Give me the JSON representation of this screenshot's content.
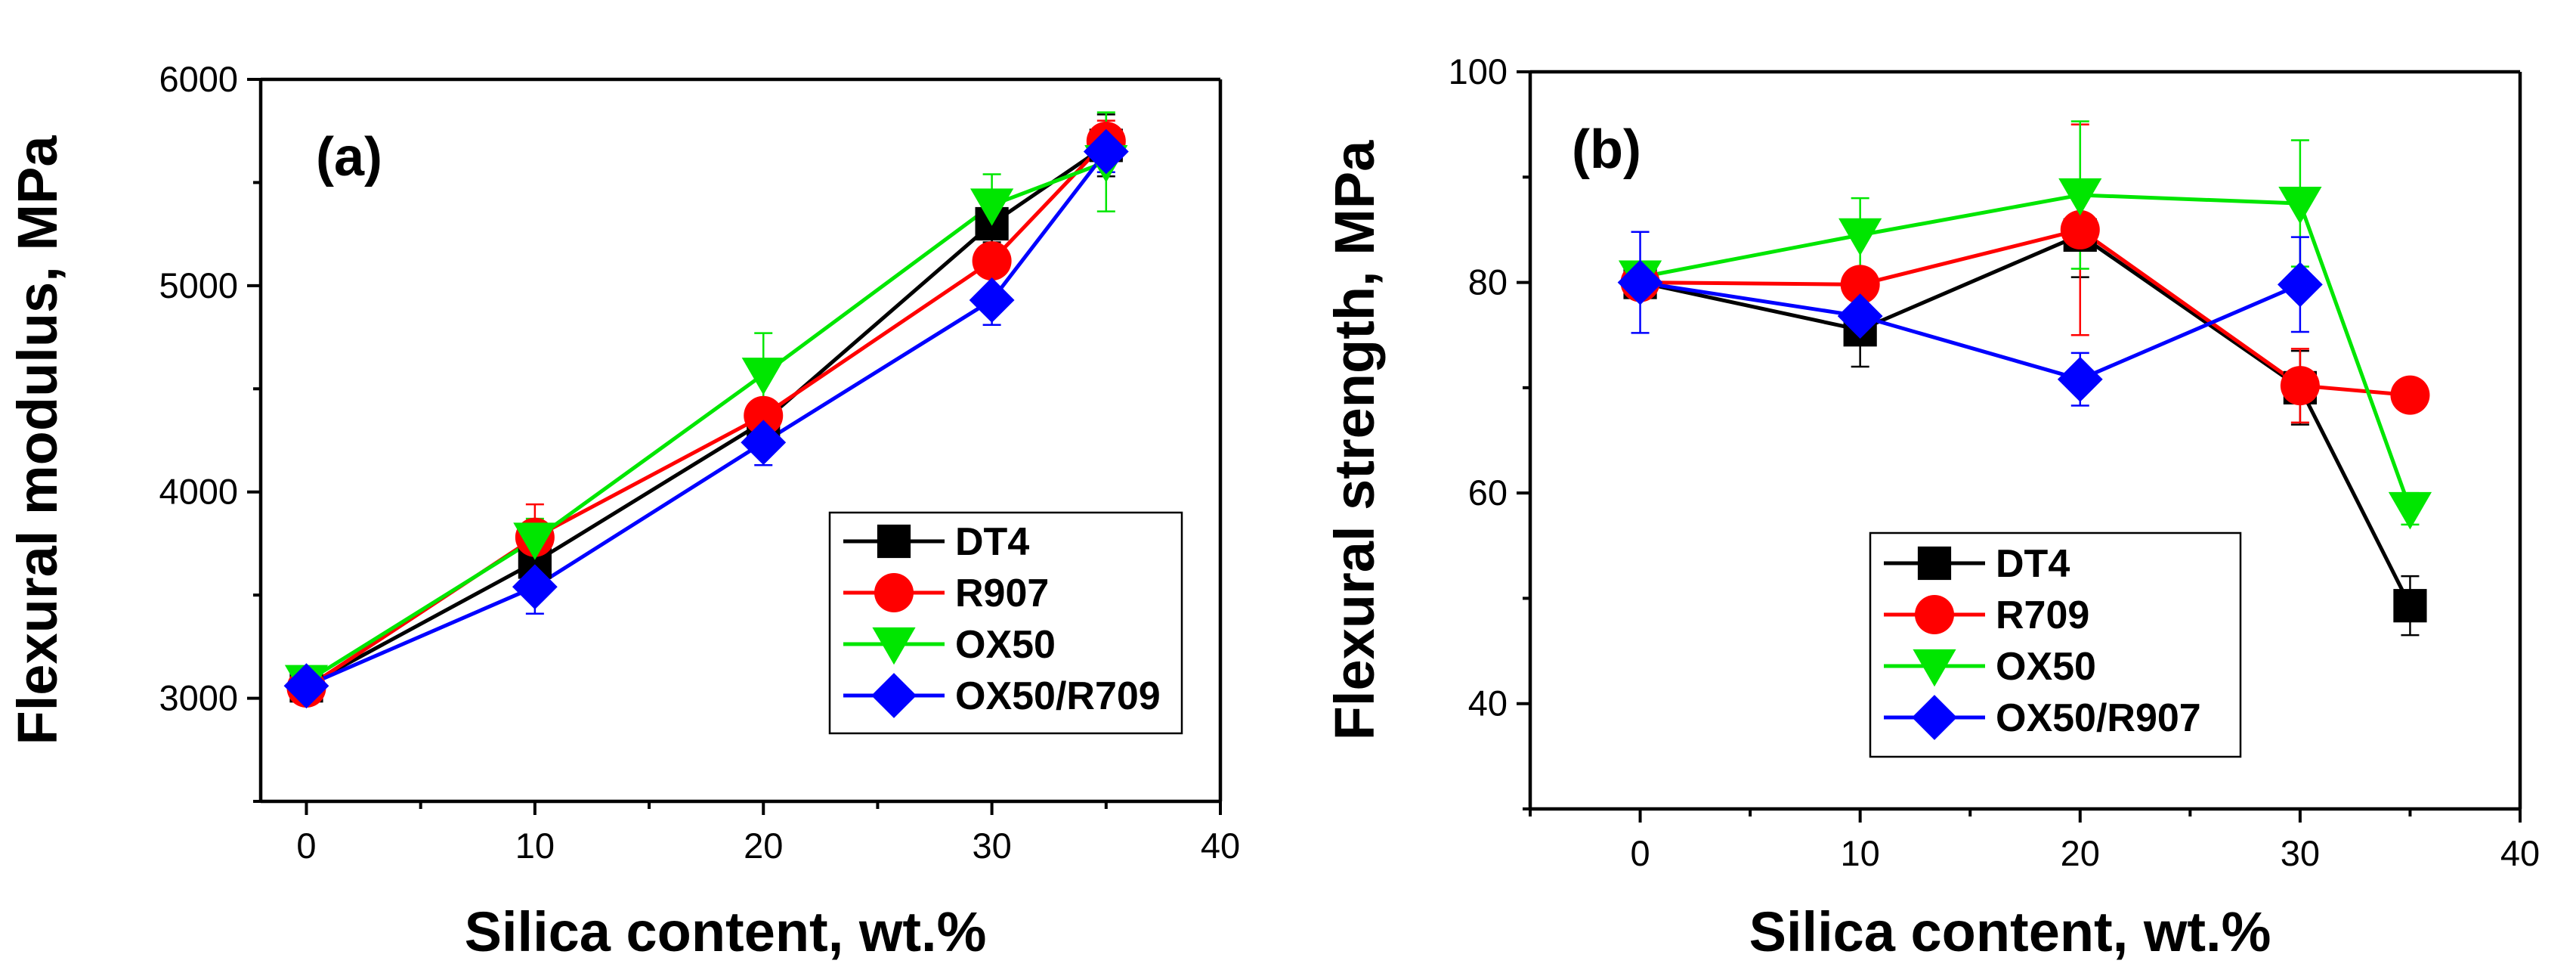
{
  "chart_data": [
    {
      "type": "line",
      "panel_label": "(a)",
      "xlabel": "Silica content, wt.%",
      "ylabel": "Flexural modulus, MPa",
      "xlim": [
        -2,
        40
      ],
      "ylim": [
        2500,
        6000
      ],
      "xticks": [
        0,
        10,
        20,
        30,
        40
      ],
      "yticks": [
        3000,
        4000,
        5000,
        6000
      ],
      "legend_position": "lower-right",
      "series": [
        {
          "name": "DT4",
          "color": "#000000",
          "marker": "square",
          "x": [
            0,
            10,
            20,
            30,
            35
          ],
          "values": [
            3060,
            3660,
            4340,
            5300,
            5680
          ],
          "errors": [
            60,
            70,
            80,
            90,
            150
          ]
        },
        {
          "name": "R907",
          "color": "#ff0000",
          "marker": "circle",
          "x": [
            0,
            10,
            20,
            30,
            35
          ],
          "values": [
            3050,
            3780,
            4370,
            5120,
            5700
          ],
          "errors": [
            60,
            160,
            80,
            80,
            100
          ]
        },
        {
          "name": "OX50",
          "color": "#00e600",
          "marker": "triangle-down",
          "x": [
            0,
            10,
            20,
            30,
            35
          ],
          "values": [
            3080,
            3770,
            4570,
            5390,
            5600
          ],
          "errors": [
            60,
            100,
            200,
            150,
            240
          ]
        },
        {
          "name": "OX50/R709",
          "color": "#0000ff",
          "marker": "diamond",
          "x": [
            0,
            10,
            20,
            30,
            35
          ],
          "values": [
            3060,
            3540,
            4240,
            4930,
            5650
          ],
          "errors": [
            80,
            130,
            110,
            120,
            100
          ]
        }
      ]
    },
    {
      "type": "line",
      "panel_label": "(b)",
      "xlabel": "Silica content, wt.%",
      "ylabel": "Flexural strength, MPa",
      "xlim": [
        -5,
        40
      ],
      "ylim": [
        30,
        100
      ],
      "xticks": [
        0,
        10,
        20,
        30,
        40
      ],
      "yticks": [
        40,
        60,
        80,
        100
      ],
      "legend_position": "lower-left",
      "series": [
        {
          "name": "DT4",
          "color": "#000000",
          "marker": "square",
          "x": [
            0,
            10,
            20,
            30,
            35
          ],
          "values": [
            80,
            75.5,
            84.5,
            70,
            49.3
          ],
          "errors": [
            1.5,
            3.5,
            4,
            3.5,
            2.8
          ]
        },
        {
          "name": "R709",
          "color": "#ff0000",
          "marker": "circle",
          "x": [
            0,
            10,
            20,
            30,
            35
          ],
          "values": [
            80,
            79.8,
            85,
            70.2,
            69.3
          ],
          "errors": [
            1.5,
            1.5,
            10,
            3.5,
            1
          ]
        },
        {
          "name": "OX50",
          "color": "#00e600",
          "marker": "triangle-down",
          "x": [
            0,
            10,
            20,
            30,
            35
          ],
          "values": [
            80.5,
            84.5,
            88.3,
            87.5,
            58.5
          ],
          "errors": [
            1,
            3.5,
            7,
            6,
            1.5
          ]
        },
        {
          "name": "OX50/R907",
          "color": "#0000ff",
          "marker": "diamond",
          "x": [
            0,
            10,
            20,
            30
          ],
          "values": [
            80,
            76.8,
            70.8,
            79.8
          ],
          "errors": [
            4.8,
            2,
            2.5,
            4.5
          ]
        }
      ]
    }
  ]
}
